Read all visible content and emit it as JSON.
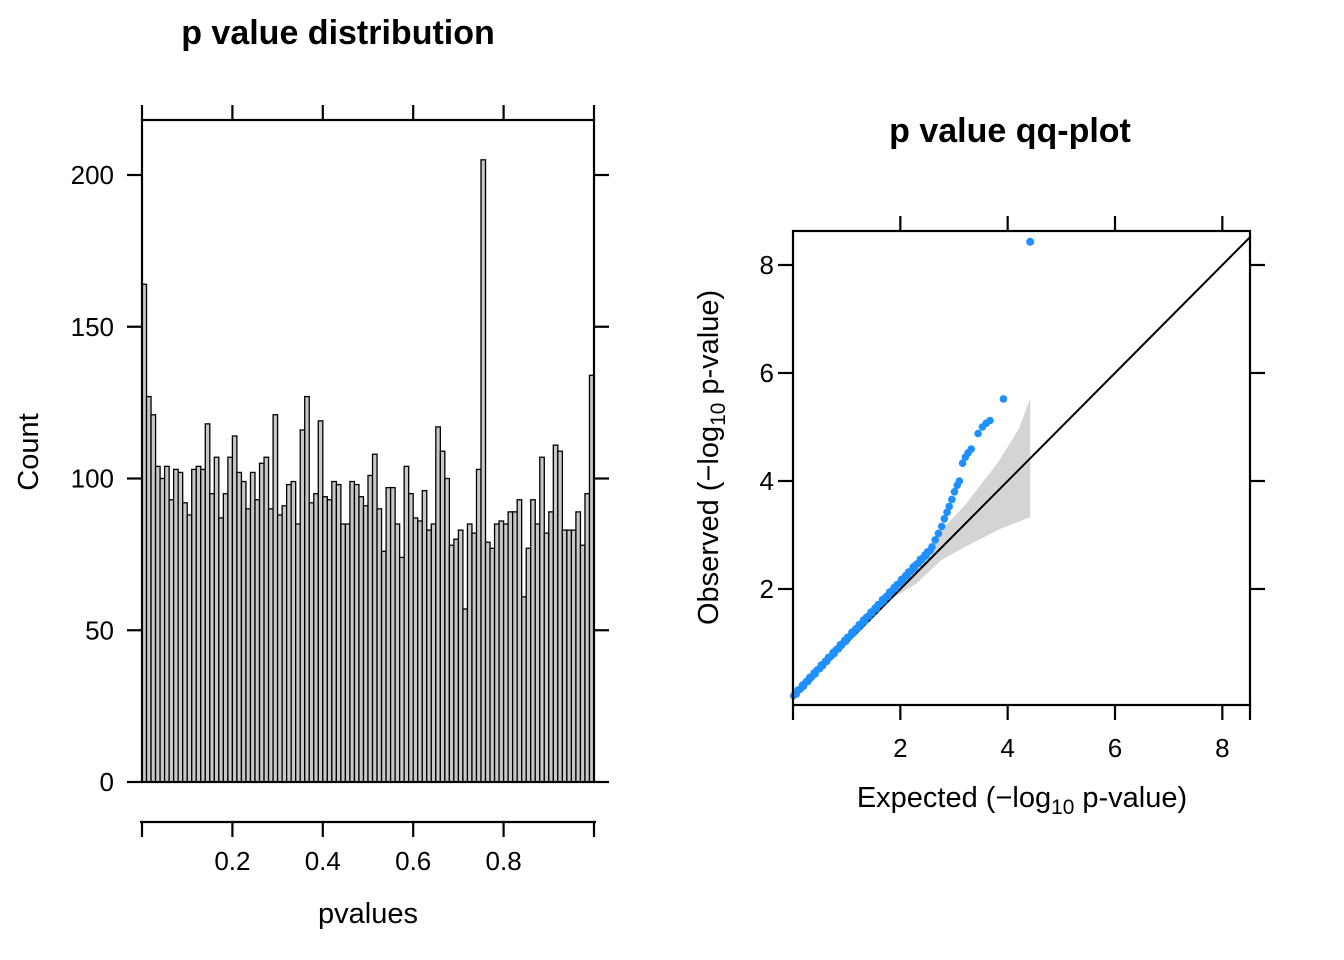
{
  "page": {
    "background": "#ffffff"
  },
  "hist": {
    "title": "p value distribution",
    "xlabel": "pvalues",
    "ylabel": "Count",
    "bar_fill": "#C8C8C8",
    "bar_stroke": "#000000"
  },
  "qq": {
    "title": "p value qq-plot",
    "xlabel_pre": "Expected (−log",
    "xlabel_sub": "10",
    "xlabel_post": " p-value)",
    "ylabel_pre": "Observed (−log",
    "ylabel_sub": "10",
    "ylabel_post": " p-value)",
    "point_color": "#1E90FF",
    "band_color": "#D4D4D4",
    "line_color": "#000000"
  },
  "chart_data": [
    {
      "type": "bar",
      "title": "p value distribution",
      "xlabel": "pvalues",
      "ylabel": "Count",
      "bin_start": 0,
      "bin_width": 0.01,
      "xlim": [
        0,
        1
      ],
      "ylim": [
        0,
        218
      ],
      "ytick_values": [
        0,
        50,
        100,
        150,
        200
      ],
      "xtick_marks": [
        0,
        0.2,
        0.4,
        0.6,
        0.8,
        1
      ],
      "xtick_labels": [
        0.2,
        0.4,
        0.6,
        0.8
      ],
      "grid": false,
      "values": [
        164,
        127,
        121,
        104,
        100,
        104,
        93,
        103,
        102,
        92,
        88,
        103,
        104,
        103,
        118,
        95,
        107,
        87,
        95,
        107,
        114,
        102,
        99,
        90,
        102,
        93,
        105,
        107,
        90,
        121,
        88,
        91,
        98,
        99,
        85,
        116,
        127,
        92,
        95,
        119,
        94,
        93,
        99,
        98,
        85,
        85,
        99,
        98,
        94,
        91,
        101,
        108,
        90,
        76,
        97,
        97,
        85,
        74,
        104,
        95,
        87,
        86,
        96,
        83,
        85,
        117,
        109,
        100,
        78,
        80,
        83,
        57,
        85,
        82,
        103,
        205,
        79,
        77,
        85,
        86,
        85,
        89,
        89,
        93,
        61,
        77,
        93,
        85,
        107,
        82,
        89,
        111,
        109,
        83,
        83,
        83,
        89,
        78,
        95,
        134
      ]
    },
    {
      "type": "scatter",
      "title": "p value qq-plot",
      "xlabel": "Expected (-log10 p-value)",
      "ylabel": "Observed (-log10 p-value)",
      "xlim": [
        0,
        8.53
      ],
      "ylim": [
        0,
        8.74
      ],
      "xtick_values": [
        2,
        4,
        6,
        8
      ],
      "ytick_values": [
        2,
        4,
        6,
        8
      ],
      "grid": false,
      "diagonal": [
        [
          0,
          0
        ],
        [
          8.53,
          8.53
        ]
      ],
      "band": {
        "upper": [
          [
            1.85,
            1.92
          ],
          [
            2.3,
            2.5
          ],
          [
            2.77,
            3.09
          ],
          [
            3.21,
            3.56
          ],
          [
            3.83,
            4.36
          ],
          [
            4.2,
            4.95
          ],
          [
            4.42,
            5.53
          ]
        ],
        "lower": [
          [
            1.85,
            1.83
          ],
          [
            2.3,
            2.1
          ],
          [
            2.77,
            2.54
          ],
          [
            3.21,
            2.78
          ],
          [
            3.83,
            3.1
          ],
          [
            4.42,
            3.33
          ]
        ]
      },
      "dense_segment": {
        "e_start": 0.01,
        "e_end": 2.56,
        "count": 95,
        "slope": 1.06,
        "intercept": 0.012,
        "jitter": 0.028
      },
      "tail_points": [
        [
          2.59,
          2.78
        ],
        [
          2.65,
          2.91
        ],
        [
          2.71,
          3.03
        ],
        [
          2.77,
          3.16
        ],
        [
          2.82,
          3.3
        ],
        [
          2.87,
          3.42
        ],
        [
          2.91,
          3.53
        ],
        [
          2.96,
          3.66
        ],
        [
          3.01,
          3.8
        ],
        [
          3.06,
          3.92
        ],
        [
          3.1,
          4.0
        ],
        [
          3.16,
          4.33
        ],
        [
          3.21,
          4.44
        ],
        [
          3.26,
          4.52
        ],
        [
          3.32,
          4.59
        ],
        [
          3.45,
          4.88
        ],
        [
          3.53,
          5.0
        ],
        [
          3.6,
          5.07
        ],
        [
          3.67,
          5.12
        ],
        [
          3.92,
          5.52
        ]
      ],
      "outlier": [
        4.42,
        8.43
      ]
    }
  ]
}
